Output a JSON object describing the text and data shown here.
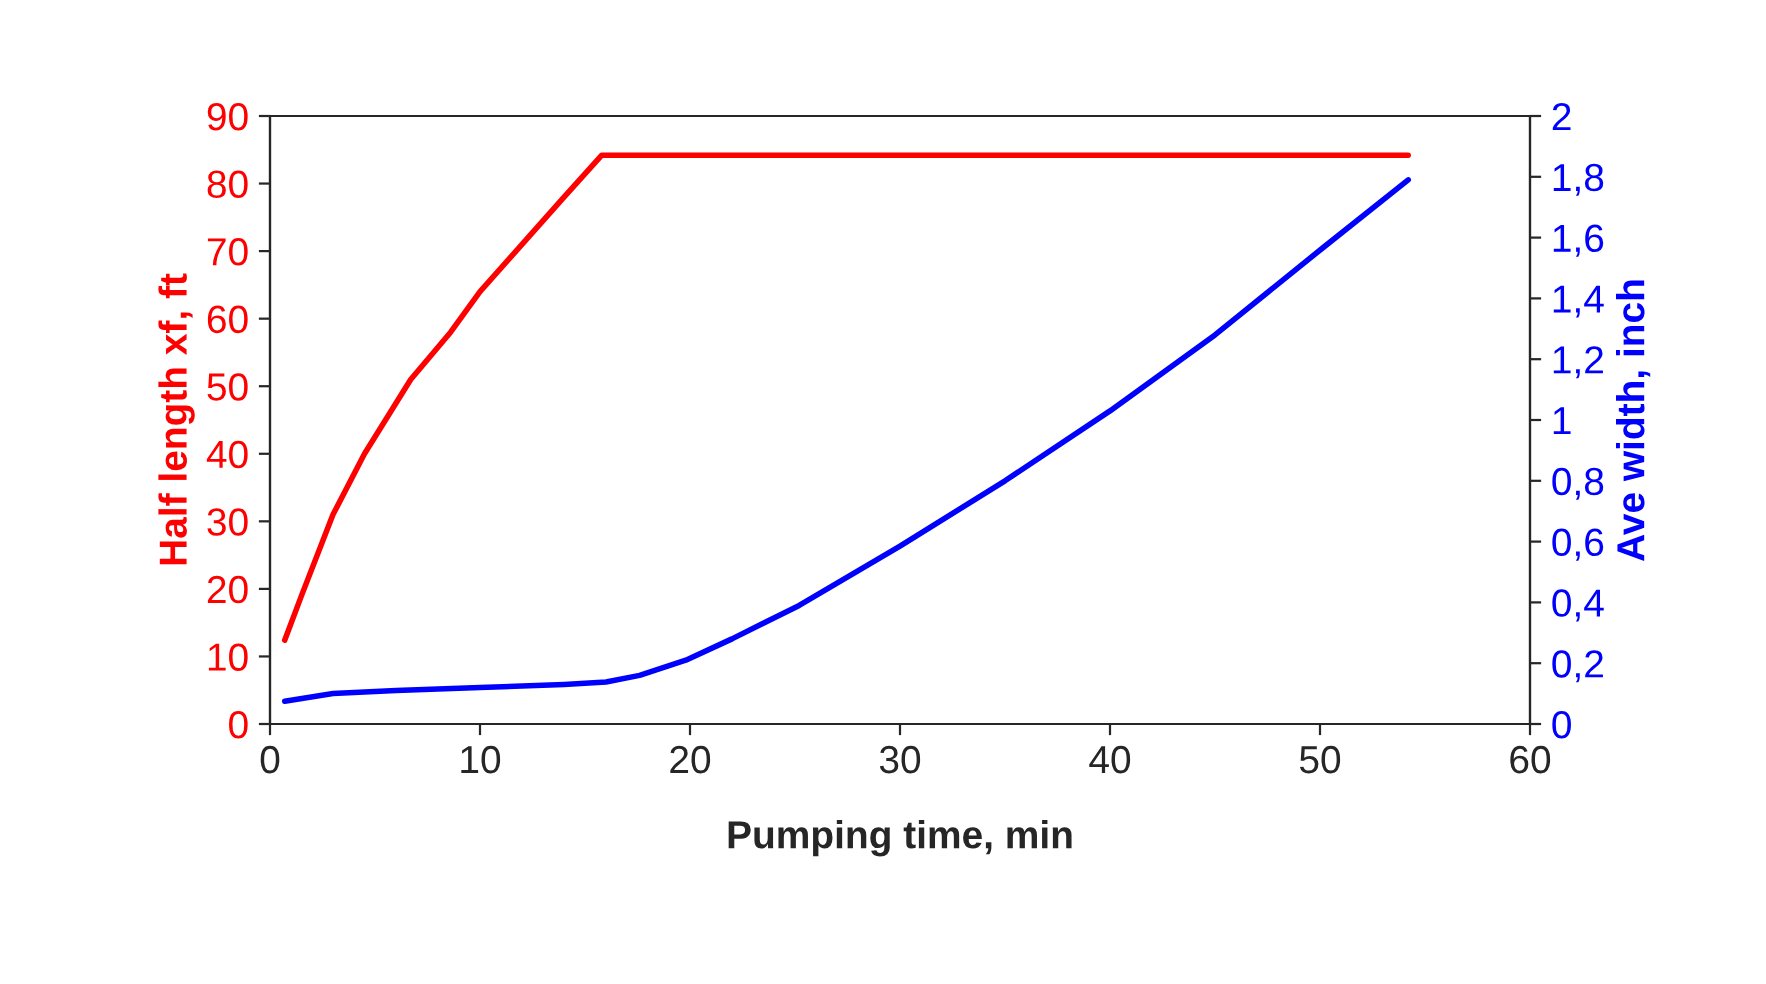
{
  "chart_data": {
    "type": "line",
    "xlabel": "Pumping time, min",
    "ylabel": "Half length xf, ft",
    "y2label": "Ave width, inch",
    "xlim": [
      0,
      60
    ],
    "xticks": [
      0,
      10,
      20,
      30,
      40,
      50,
      60
    ],
    "ylim": [
      0,
      90
    ],
    "yticks": [
      0,
      10,
      20,
      30,
      40,
      50,
      60,
      70,
      80,
      90
    ],
    "y2lim": [
      0,
      2
    ],
    "y2ticks": [
      0,
      {
        "value": 0.2,
        "label": "0,2"
      },
      {
        "value": 0.4,
        "label": "0,4"
      },
      {
        "value": 0.6,
        "label": "0,6"
      },
      {
        "value": 0.8,
        "label": "0,8"
      },
      1,
      {
        "value": 1.2,
        "label": "1,2"
      },
      {
        "value": 1.4,
        "label": "1,4"
      },
      {
        "value": 1.6,
        "label": "1,6"
      },
      {
        "value": 1.8,
        "label": "1,8"
      },
      2
    ],
    "grid": false,
    "legend": false,
    "marker": "none",
    "line_style": "solid",
    "series": [
      {
        "color": "#ff0000",
        "x": [
          0.7,
          1.5,
          3,
          4.5,
          6.7,
          8.6,
          10,
          12,
          14,
          15.8,
          54.2
        ],
        "values": [
          12.4,
          19,
          31,
          40,
          51,
          58,
          64,
          71,
          78,
          84.2,
          84.2
        ]
      },
      {
        "color": "#0000ff",
        "axis": "y2",
        "x": [
          0.7,
          3,
          6,
          10,
          14,
          16,
          17.6,
          19.8,
          22,
          25.2,
          30,
          35,
          40,
          45,
          50.2,
          54.2
        ],
        "values": [
          0.075,
          0.1,
          0.11,
          0.12,
          0.13,
          0.138,
          0.16,
          0.21,
          0.28,
          0.39,
          0.585,
          0.8,
          1.03,
          1.28,
          1.57,
          1.79
        ]
      }
    ]
  }
}
